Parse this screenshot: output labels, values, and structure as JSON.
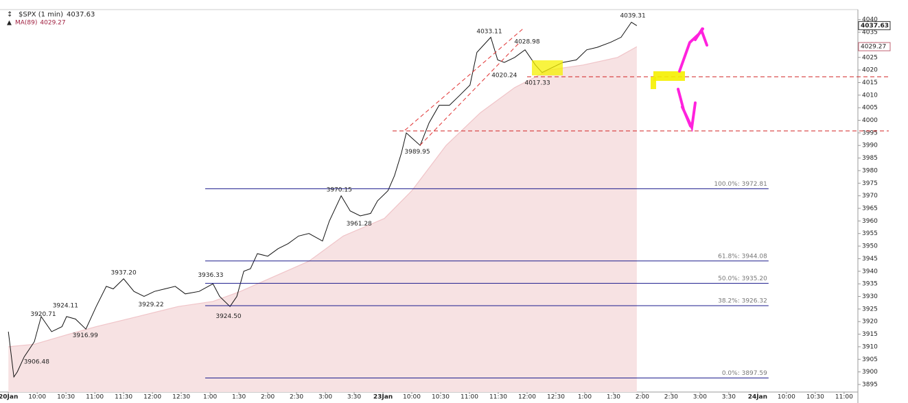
{
  "chart_data": {
    "type": "line",
    "title": "$SPX (1 min)",
    "xlim": [
      -0.29,
      29.48
    ],
    "ylim": [
      3892,
      4044
    ],
    "xticks": [
      {
        "value": 0,
        "label": "20Jan"
      },
      {
        "value": 1,
        "label": "10:00"
      },
      {
        "value": 2,
        "label": "10:30"
      },
      {
        "value": 3,
        "label": "11:00"
      },
      {
        "value": 4,
        "label": "11:30"
      },
      {
        "value": 5,
        "label": "12:00"
      },
      {
        "value": 6,
        "label": "12:30"
      },
      {
        "value": 7,
        "label": "1:00"
      },
      {
        "value": 8,
        "label": "1:30"
      },
      {
        "value": 9,
        "label": "2:00"
      },
      {
        "value": 10,
        "label": "2:30"
      },
      {
        "value": 11,
        "label": "3:00"
      },
      {
        "value": 12,
        "label": "3:30"
      },
      {
        "value": 13,
        "label": "23Jan"
      },
      {
        "value": 14,
        "label": "10:00"
      },
      {
        "value": 15,
        "label": "10:30"
      },
      {
        "value": 16,
        "label": "11:00"
      },
      {
        "value": 17,
        "label": "11:30"
      },
      {
        "value": 18,
        "label": "12:00"
      },
      {
        "value": 19,
        "label": "12:30"
      },
      {
        "value": 20,
        "label": "1:00"
      },
      {
        "value": 21,
        "label": "1:30"
      },
      {
        "value": 22,
        "label": "2:00"
      },
      {
        "value": 23,
        "label": "2:30"
      },
      {
        "value": 24,
        "label": "3:00"
      },
      {
        "value": 25,
        "label": "3:30"
      },
      {
        "value": 26,
        "label": "24Jan"
      },
      {
        "value": 27,
        "label": "10:00"
      },
      {
        "value": 28,
        "label": "10:30"
      },
      {
        "value": 29,
        "label": "11:00"
      }
    ],
    "yticks": [
      3895,
      3900,
      3905,
      3910,
      3915,
      3920,
      3925,
      3930,
      3935,
      3940,
      3945,
      3950,
      3955,
      3960,
      3965,
      3970,
      3975,
      3980,
      3985,
      3990,
      3995,
      4000,
      4005,
      4010,
      4015,
      4020,
      4025,
      4030,
      4035,
      4040
    ],
    "series": [
      {
        "name": "$SPX",
        "color": "#111111",
        "x": [
          0,
          0.19,
          0.31,
          0.55,
          0.9,
          1.14,
          1.5,
          1.86,
          2.02,
          2.33,
          2.69,
          3.05,
          3.4,
          3.64,
          4,
          4.36,
          4.71,
          5.07,
          5.43,
          5.79,
          6.14,
          6.62,
          7.1,
          7.33,
          7.69,
          7.93,
          8.17,
          8.4,
          8.64,
          9,
          9.36,
          9.71,
          10.07,
          10.43,
          10.9,
          11.14,
          11.55,
          11.86,
          12.21,
          12.57,
          12.81,
          13.17,
          13.4,
          13.64,
          13.81,
          14,
          14.29,
          14.6,
          14.95,
          15.31,
          15.67,
          16.02,
          16.26,
          16.5,
          16.74,
          16.98,
          17.21,
          17.57,
          17.93,
          18.29,
          18.52,
          18.88,
          19.24,
          19.71,
          20.07,
          20.43,
          20.9,
          21.26,
          21.62,
          21.81
        ],
        "values": [
          3916,
          3898,
          3900,
          3906,
          3912,
          3922,
          3916,
          3918,
          3922,
          3921,
          3917,
          3926,
          3934,
          3933,
          3937,
          3932,
          3930,
          3932,
          3933,
          3934,
          3931,
          3932,
          3935,
          3930,
          3926,
          3930,
          3940,
          3941,
          3947,
          3946,
          3949,
          3951,
          3954,
          3955,
          3952,
          3960,
          3970,
          3964,
          3962,
          3963,
          3968,
          3972,
          3978,
          3987,
          3995,
          3993,
          3990,
          3999,
          4006,
          4006,
          4010,
          4014,
          4027,
          4030,
          4033,
          4024,
          4023,
          4025,
          4028,
          4022,
          4019,
          4021,
          4023,
          4024,
          4028,
          4029,
          4031,
          4033,
          4039,
          4037.63
        ]
      },
      {
        "name": "MA(89)",
        "color": "#f0c4c8",
        "x": [
          0,
          0.9,
          2.1,
          3.05,
          4.48,
          5.9,
          7.1,
          8.05,
          9.24,
          10.43,
          11.62,
          13.05,
          14,
          15.19,
          16.38,
          17.57,
          18.76,
          19.95,
          21.14,
          21.81
        ],
        "values": [
          3910,
          3911,
          3915,
          3918,
          3922,
          3926,
          3928,
          3932,
          3938,
          3944,
          3954,
          3961,
          3972,
          3990,
          4003,
          4013,
          4020,
          4022,
          4025,
          4029.27
        ]
      }
    ],
    "highs": [
      {
        "x": 21.67,
        "value": 4039.31,
        "label": "4039.31"
      },
      {
        "x": 16.69,
        "value": 4033.11,
        "label": "4033.11"
      },
      {
        "x": 18.0,
        "value": 4028.98,
        "label": "4028.98"
      },
      {
        "x": 11.48,
        "value": 3970.15,
        "label": "3970.15"
      },
      {
        "x": 4.0,
        "value": 3937.2,
        "label": "3937.20"
      },
      {
        "x": 7.02,
        "value": 3936.33,
        "label": "3936.33"
      },
      {
        "x": 1.98,
        "value": 3924.11,
        "label": "3924.11"
      },
      {
        "x": 1.21,
        "value": 3920.71,
        "label": "3920.71"
      }
    ],
    "lows": [
      {
        "x": 17.21,
        "value": 4020.24,
        "label": "4020.24"
      },
      {
        "x": 18.36,
        "value": 4017.33,
        "label": "4017.33"
      },
      {
        "x": 14.19,
        "value": 3989.95,
        "label": "3989.95"
      },
      {
        "x": 12.17,
        "value": 3961.28,
        "label": "3961.28"
      },
      {
        "x": 4.95,
        "value": 3929.22,
        "label": "3929.22"
      },
      {
        "x": 7.64,
        "value": 3924.5,
        "label": "3924.50"
      },
      {
        "x": 2.67,
        "value": 3916.99,
        "label": "3916.99"
      },
      {
        "x": 0.98,
        "value": 3906.48,
        "label": "3906.48"
      }
    ],
    "fib": {
      "color": "#1a1a8c",
      "x": [
        6.83,
        26.38
      ],
      "levels": [
        {
          "value": 3972.81,
          "label": "100.0%: 3972.81"
        },
        {
          "value": 3944.08,
          "label": "61.8%: 3944.08"
        },
        {
          "value": 3935.2,
          "label": "50.0%: 3935.20"
        },
        {
          "value": 3926.32,
          "label": "38.2%: 3926.32"
        },
        {
          "value": 3897.59,
          "label": "0.0%: 3897.59"
        }
      ]
    }
  }
}
